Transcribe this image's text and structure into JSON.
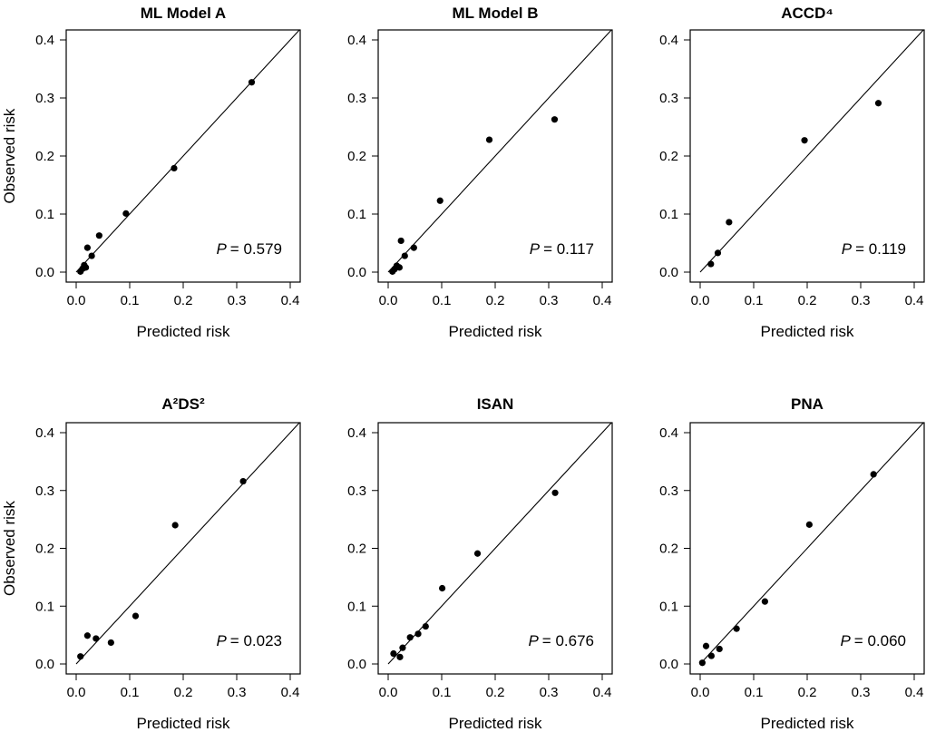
{
  "chart_data": [
    {
      "type": "scatter",
      "title": "ML Model A",
      "xlabel": "Predicted risk",
      "ylabel": "Observed risk",
      "xlim": [
        0,
        0.4
      ],
      "ylim": [
        0,
        0.4
      ],
      "ticks": [
        "0.0",
        "0.1",
        "0.2",
        "0.3",
        "0.4"
      ],
      "p_label": "P",
      "p_value": "= 0.579",
      "reference_line": "y = x",
      "x": [
        0.008,
        0.012,
        0.015,
        0.018,
        0.021,
        0.029,
        0.043,
        0.093,
        0.183,
        0.328
      ],
      "y": [
        0.001,
        0.006,
        0.012,
        0.008,
        0.042,
        0.028,
        0.063,
        0.101,
        0.179,
        0.327
      ]
    },
    {
      "type": "scatter",
      "title": "ML Model B",
      "xlabel": "Predicted risk",
      "ylabel": "",
      "xlim": [
        0,
        0.4
      ],
      "ylim": [
        0,
        0.4
      ],
      "ticks": [
        "0.0",
        "0.1",
        "0.2",
        "0.3",
        "0.4"
      ],
      "p_label": "P",
      "p_value": "= 0.117",
      "reference_line": "y = x",
      "x": [
        0.008,
        0.012,
        0.016,
        0.021,
        0.024,
        0.031,
        0.048,
        0.097,
        0.189,
        0.311
      ],
      "y": [
        0.001,
        0.005,
        0.011,
        0.008,
        0.054,
        0.028,
        0.042,
        0.123,
        0.228,
        0.263
      ]
    },
    {
      "type": "scatter",
      "title": "ACCD⁴",
      "xlabel": "Predicted risk",
      "ylabel": "",
      "xlim": [
        0,
        0.4
      ],
      "ylim": [
        0,
        0.4
      ],
      "ticks": [
        "0.0",
        "0.1",
        "0.2",
        "0.3",
        "0.4"
      ],
      "p_label": "P",
      "p_value": "= 0.119",
      "reference_line": "y = x",
      "x": [
        0.02,
        0.033,
        0.054,
        0.195,
        0.333
      ],
      "y": [
        0.014,
        0.033,
        0.086,
        0.227,
        0.291
      ]
    },
    {
      "type": "scatter",
      "title": "A²DS²",
      "xlabel": "Predicted risk",
      "ylabel": "Observed risk",
      "xlim": [
        0,
        0.4
      ],
      "ylim": [
        0,
        0.4
      ],
      "ticks": [
        "0.0",
        "0.1",
        "0.2",
        "0.3",
        "0.4"
      ],
      "p_label": "P",
      "p_value": "= 0.023",
      "reference_line": "y = x",
      "x": [
        0.008,
        0.021,
        0.037,
        0.065,
        0.111,
        0.185,
        0.312
      ],
      "y": [
        0.013,
        0.049,
        0.044,
        0.037,
        0.083,
        0.24,
        0.316
      ]
    },
    {
      "type": "scatter",
      "title": "ISAN",
      "xlabel": "Predicted risk",
      "ylabel": "",
      "xlim": [
        0,
        0.4
      ],
      "ylim": [
        0,
        0.4
      ],
      "ticks": [
        "0.0",
        "0.1",
        "0.2",
        "0.3",
        "0.4"
      ],
      "p_label": "P",
      "p_value": "= 0.676",
      "reference_line": "y = x",
      "x": [
        0.01,
        0.022,
        0.027,
        0.041,
        0.056,
        0.07,
        0.101,
        0.167,
        0.312
      ],
      "y": [
        0.018,
        0.012,
        0.028,
        0.046,
        0.052,
        0.065,
        0.131,
        0.191,
        0.296
      ]
    },
    {
      "type": "scatter",
      "title": "PNA",
      "xlabel": "Predicted risk",
      "ylabel": "",
      "xlim": [
        0,
        0.4
      ],
      "ylim": [
        0,
        0.4
      ],
      "ticks": [
        "0.0",
        "0.1",
        "0.2",
        "0.3",
        "0.4"
      ],
      "p_label": "P",
      "p_value": "= 0.060",
      "reference_line": "y = x",
      "x": [
        0.004,
        0.011,
        0.021,
        0.036,
        0.068,
        0.121,
        0.204,
        0.324
      ],
      "y": [
        0.002,
        0.031,
        0.014,
        0.026,
        0.061,
        0.108,
        0.241,
        0.328
      ]
    }
  ]
}
